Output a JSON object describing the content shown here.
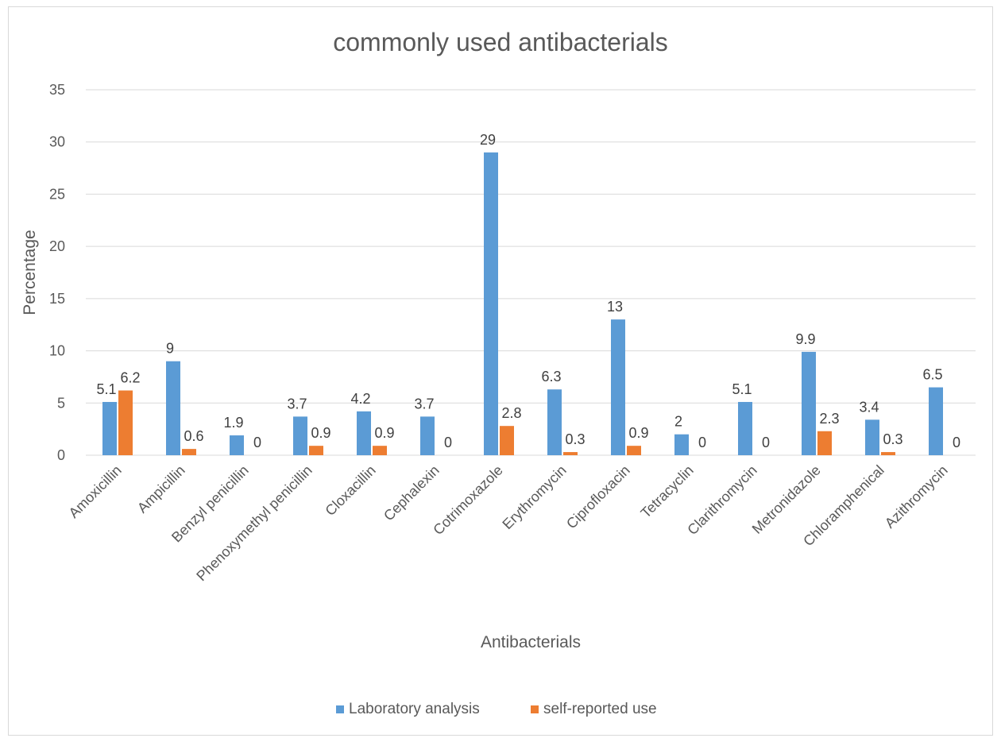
{
  "chart_data": {
    "type": "bar",
    "title": "commonly used antibacterials",
    "xlabel": "Antibacterials",
    "ylabel": "Percentage",
    "ylim": [
      0,
      35
    ],
    "yticks": [
      0,
      5,
      10,
      15,
      20,
      25,
      30,
      35
    ],
    "grid": true,
    "legend_position": "bottom",
    "categories": [
      "Amoxicillin",
      "Ampicillin",
      "Benzyl penicillin",
      "Phenoxymethyl penicillin",
      "Cloxacillin",
      "Cephalexin",
      "Cotrimoxazole",
      "Erythromycin",
      "Ciprofloxacin",
      "Tetracyclin",
      "Clarithromycin",
      "Metronidazole",
      "Chloramphenical",
      "Azithromycin"
    ],
    "series": [
      {
        "name": "Laboratory analysis",
        "color": "#5b9bd5",
        "values": [
          5.1,
          9,
          1.9,
          3.7,
          4.2,
          3.7,
          29,
          6.3,
          13,
          2,
          5.1,
          9.9,
          3.4,
          6.5
        ]
      },
      {
        "name": "self-reported use",
        "color": "#ed7d31",
        "values": [
          6.2,
          0.6,
          0,
          0.9,
          0.9,
          0,
          2.8,
          0.3,
          0.9,
          0,
          0,
          2.3,
          0.3,
          0
        ]
      }
    ]
  }
}
